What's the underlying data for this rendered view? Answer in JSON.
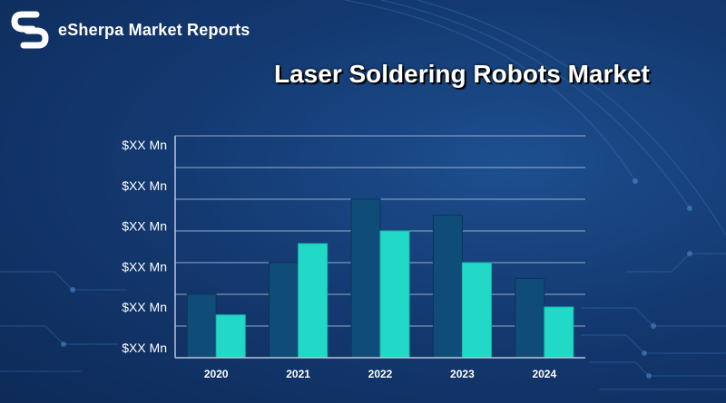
{
  "brand": {
    "name": "eSherpa Market Reports",
    "logo_icon": "sherpa-s-logo-icon"
  },
  "colors": {
    "background": "#143a72",
    "series_dark": "#0f4d78",
    "series_light": "#21d9c6",
    "grid": "#b9c6d8",
    "text": "#ffffff"
  },
  "chart_data": {
    "type": "bar",
    "title": "Laser Soldering Robots Market",
    "categories": [
      "2020",
      "2021",
      "2022",
      "2023",
      "2024"
    ],
    "y_tick_labels": [
      "$XX Mn",
      "$XX Mn",
      "$XX Mn",
      "$XX Mn",
      "$XX Mn",
      "$XX Mn"
    ],
    "ylim": [
      0,
      7
    ],
    "grid": true,
    "legend": "none",
    "series": [
      {
        "color": "#0f4d78",
        "values": [
          2.0,
          3.0,
          5.0,
          4.5,
          2.5
        ]
      },
      {
        "color": "#21d9c6",
        "values": [
          1.35,
          3.6,
          4.0,
          3.0,
          1.6
        ]
      }
    ]
  }
}
